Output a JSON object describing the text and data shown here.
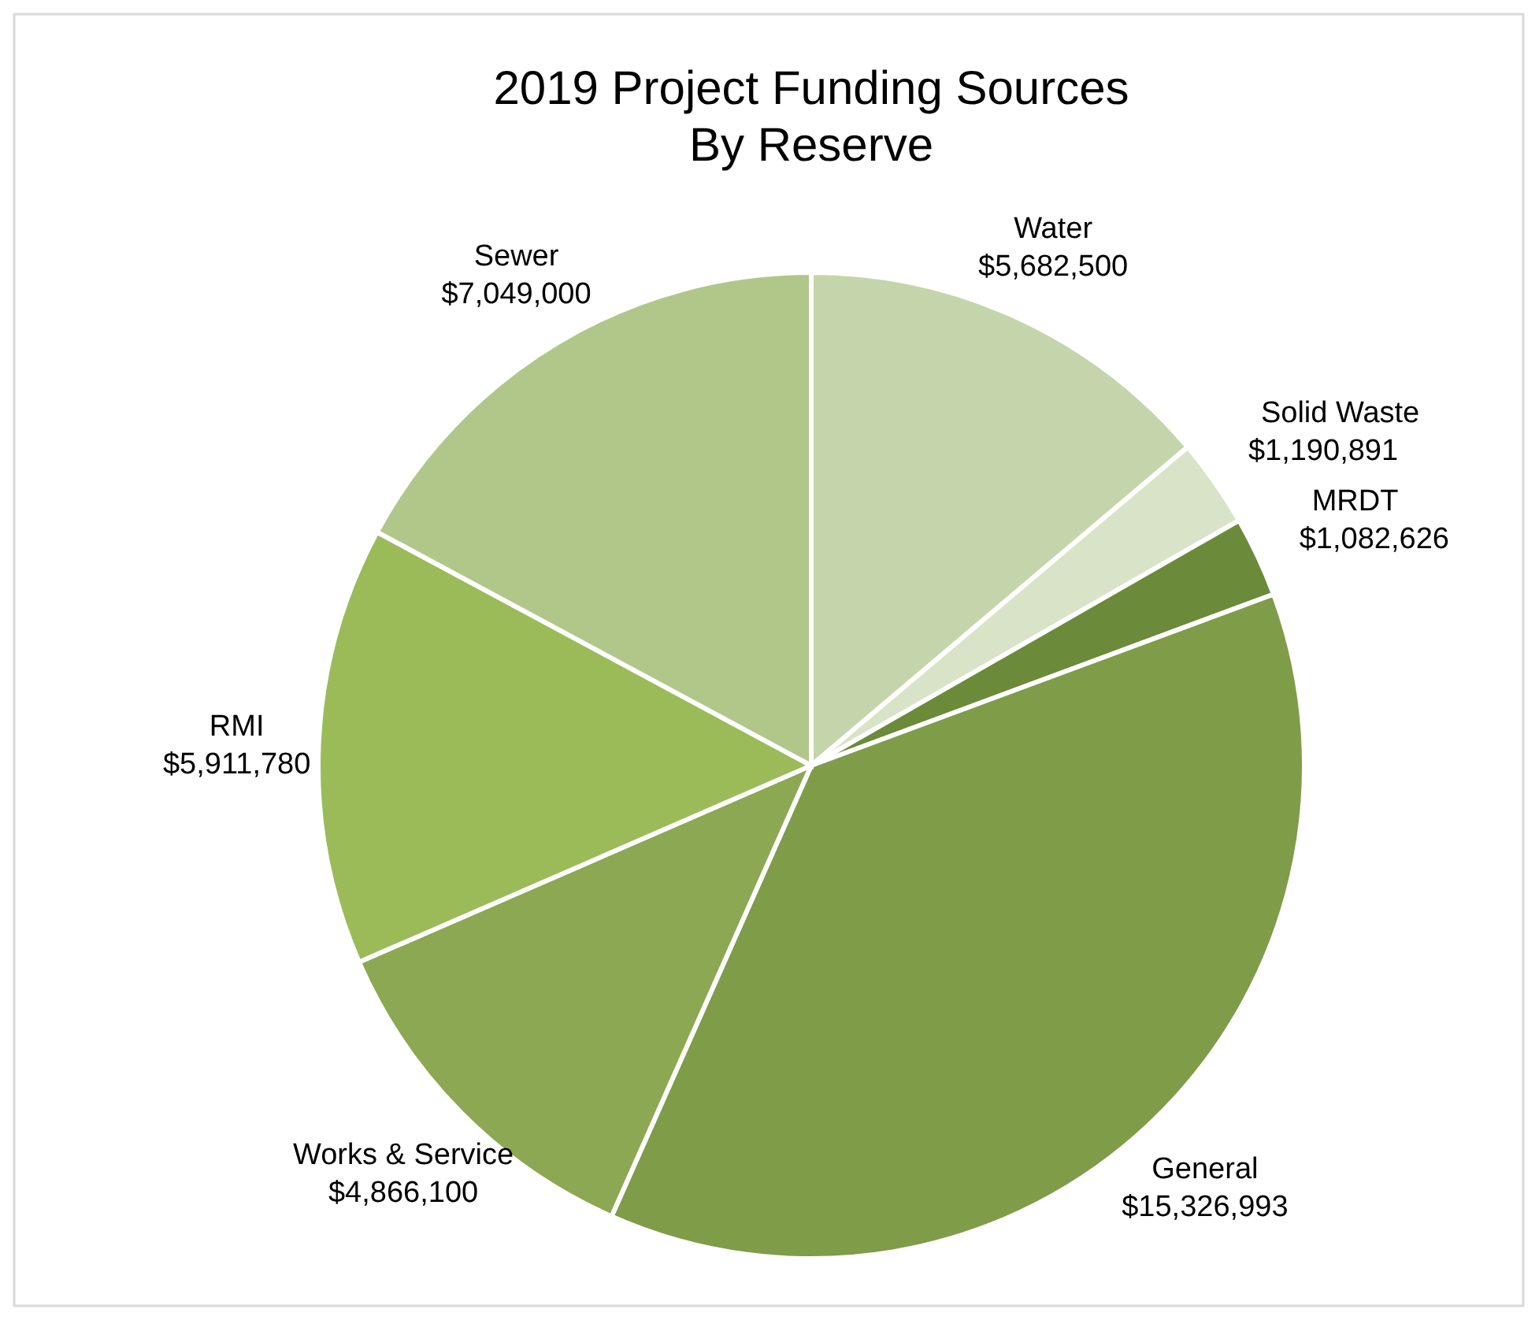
{
  "chart_data": {
    "type": "pie",
    "title": "2019 Project Funding Sources\nBy Reserve",
    "categories": [
      "Water",
      "Solid Waste",
      "MRDT",
      "General",
      "Works & Service",
      "RMI",
      "Sewer"
    ],
    "values": [
      5682500,
      1190891,
      1082626,
      15326993,
      4866100,
      5911780,
      7049000
    ],
    "value_labels": [
      "$5,682,500",
      "$1,190,891",
      "$1,082,626",
      "$15,326,993",
      "$4,866,100",
      "$5,911,780",
      "$7,049,000"
    ],
    "colors": [
      "#c5d5ab",
      "#d9e3c8",
      "#6b8a3a",
      "#7f9c49",
      "#8ca852",
      "#9bbb59",
      "#b1c78a"
    ]
  }
}
